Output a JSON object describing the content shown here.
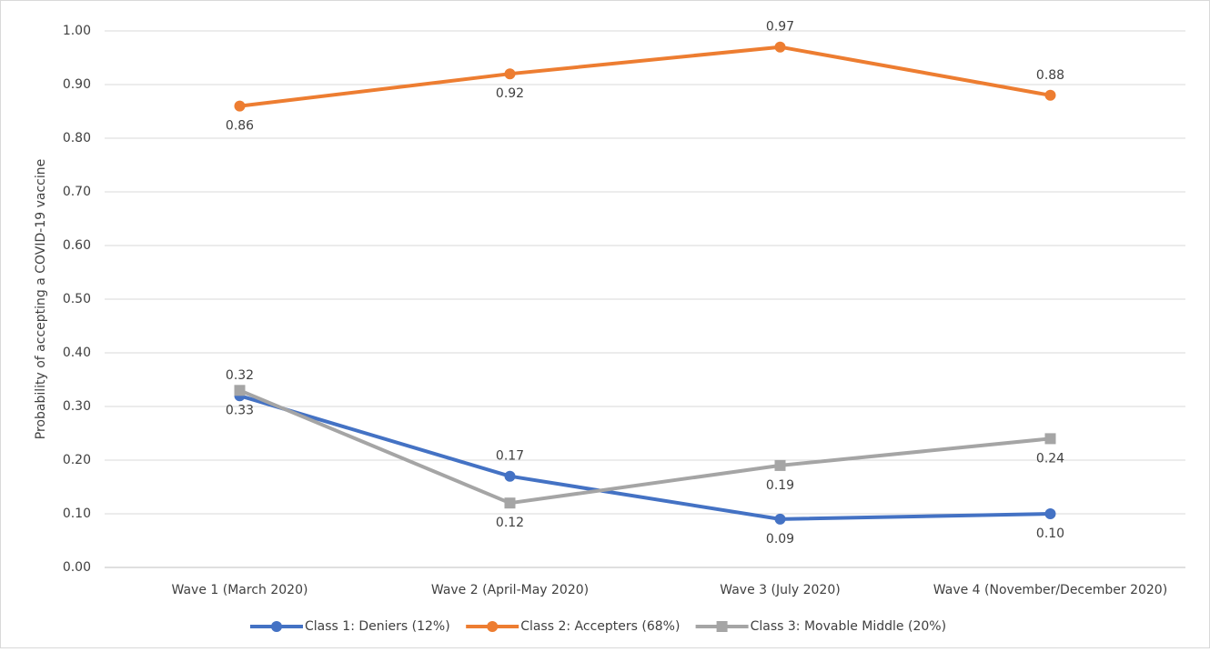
{
  "chart_data": {
    "type": "line",
    "y_label": "Probability of accepting a COVID-19 vaccine",
    "categories": [
      "Wave 1 (March 2020)",
      "Wave 2 (April-May 2020)",
      "Wave 3 (July 2020)",
      "Wave 4 (November/December 2020)"
    ],
    "series": [
      {
        "name": "Class 1: Deniers (12%)",
        "color": "#4472c4",
        "marker": "circle",
        "values": [
          0.32,
          0.17,
          0.09,
          0.1
        ],
        "value_labels": [
          "0.32",
          "0.17",
          "0.09",
          "0.10"
        ]
      },
      {
        "name": "Class 2: Accepters (68%)",
        "color": "#ed7d31",
        "marker": "circle",
        "values": [
          0.86,
          0.92,
          0.97,
          0.88
        ],
        "value_labels": [
          "0.86",
          "0.92",
          "0.97",
          "0.88"
        ]
      },
      {
        "name": "Class 3: Movable Middle (20%)",
        "color": "#a5a5a5",
        "marker": "square",
        "values": [
          0.33,
          0.12,
          0.19,
          0.24
        ],
        "value_labels": [
          "0.33",
          "0.12",
          "0.19",
          "0.24"
        ]
      }
    ],
    "ylim": [
      0,
      1
    ],
    "yticks": [
      {
        "value": 0,
        "label": "0.00"
      },
      {
        "value": 0.1,
        "label": "0.10"
      },
      {
        "value": 0.2,
        "label": "0.20"
      },
      {
        "value": 0.3,
        "label": "0.30"
      },
      {
        "value": 0.4,
        "label": "0.40"
      },
      {
        "value": 0.5,
        "label": "0.50"
      },
      {
        "value": 0.6,
        "label": "0.60"
      },
      {
        "value": 0.7,
        "label": "0.70"
      },
      {
        "value": 0.8,
        "label": "0.80"
      },
      {
        "value": 0.9,
        "label": "0.90"
      },
      {
        "value": 1,
        "label": "1.00"
      }
    ],
    "grid": true,
    "legend": "bottom"
  }
}
